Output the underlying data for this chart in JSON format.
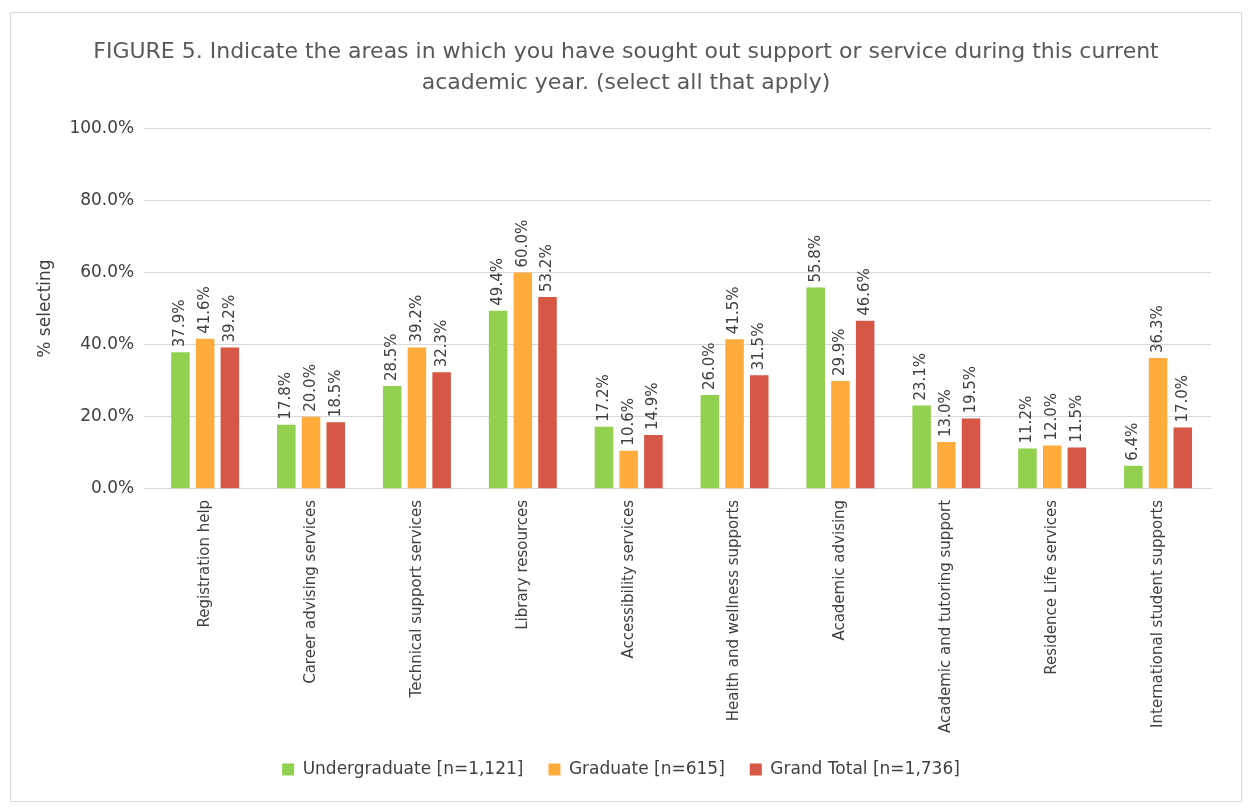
{
  "chart_data": {
    "type": "bar",
    "title": "FIGURE 5. Indicate the areas in which you have sought out support or service during this current academic year. (select all that apply)",
    "ylabel": "% selecting",
    "categories": [
      "Registration help",
      "Career advising services",
      "Technical support services",
      "Library resources",
      "Accessibility services",
      "Health and wellness supports",
      "Academic advising",
      "Academic and tutoring support",
      "Residence Life services",
      "International student supports"
    ],
    "series": [
      {
        "name": "Undergraduate [n=1,121]",
        "color": "#92d050",
        "values": [
          37.9,
          17.8,
          28.5,
          49.4,
          17.2,
          26.0,
          55.8,
          23.1,
          11.2,
          6.4
        ],
        "value_labels": [
          "37.9%",
          "17.8%",
          "28.5%",
          "49.4%",
          "17.2%",
          "26.0%",
          "55.8%",
          "23.1%",
          "11.2%",
          "6.4%"
        ]
      },
      {
        "name": "Graduate [n=615]",
        "color": "#ffac3c",
        "values": [
          41.6,
          20.0,
          39.2,
          60.0,
          10.6,
          41.5,
          29.9,
          13.0,
          12.0,
          36.3
        ],
        "value_labels": [
          "41.6%",
          "20.0%",
          "39.2%",
          "60.0%",
          "10.6%",
          "41.5%",
          "29.9%",
          "13.0%",
          "12.0%",
          "36.3%"
        ]
      },
      {
        "name": "Grand Total [n=1,736]",
        "color": "#d65745",
        "values": [
          39.2,
          18.5,
          32.3,
          53.2,
          14.9,
          31.5,
          46.6,
          19.5,
          11.5,
          17.0
        ],
        "value_labels": [
          "39.2%",
          "18.5%",
          "32.3%",
          "53.2%",
          "14.9%",
          "31.5%",
          "46.6%",
          "19.5%",
          "11.5%",
          "17.0%"
        ]
      }
    ],
    "ylim": [
      0,
      100
    ],
    "yticks": [
      {
        "value": 0,
        "label": "0.0%"
      },
      {
        "value": 20,
        "label": "20.0%"
      },
      {
        "value": 40,
        "label": "40.0%"
      },
      {
        "value": 60,
        "label": "60.0%"
      },
      {
        "value": 80,
        "label": "80.0%"
      },
      {
        "value": 100,
        "label": "100.0%"
      }
    ],
    "grid": "y",
    "legend": "bottom"
  }
}
